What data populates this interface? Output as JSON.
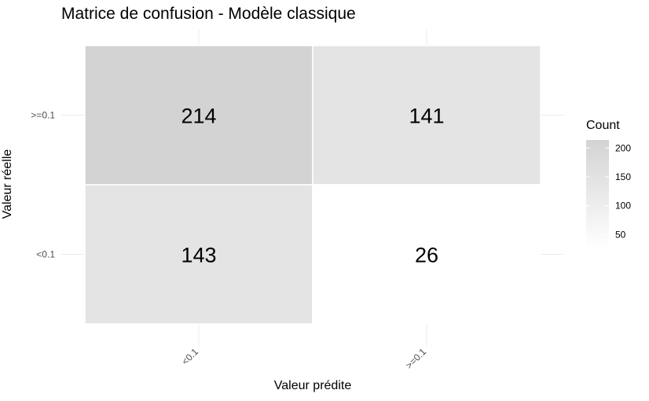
{
  "chart_data": {
    "type": "heatmap",
    "title": "Matrice de confusion - Modèle classique",
    "xlabel": "Valeur prédite",
    "ylabel": "Valeur réelle",
    "x_categories": [
      "<0.1",
      ">=0.1"
    ],
    "y_categories": [
      ">=0.1",
      "<0.1"
    ],
    "cells": [
      {
        "actual": ">=0.1",
        "predicted": "<0.1",
        "value": 214
      },
      {
        "actual": ">=0.1",
        "predicted": ">=0.1",
        "value": 141
      },
      {
        "actual": "<0.1",
        "predicted": "<0.1",
        "value": 143
      },
      {
        "actual": "<0.1",
        "predicted": ">=0.1",
        "value": 26
      }
    ],
    "legend": {
      "title": "Count",
      "ticks": [
        50,
        100,
        150,
        200
      ],
      "range": [
        26,
        214
      ],
      "low_color": "#ffffff",
      "high_color": "#d3d3d3",
      "placement": "right"
    },
    "grid": true
  }
}
